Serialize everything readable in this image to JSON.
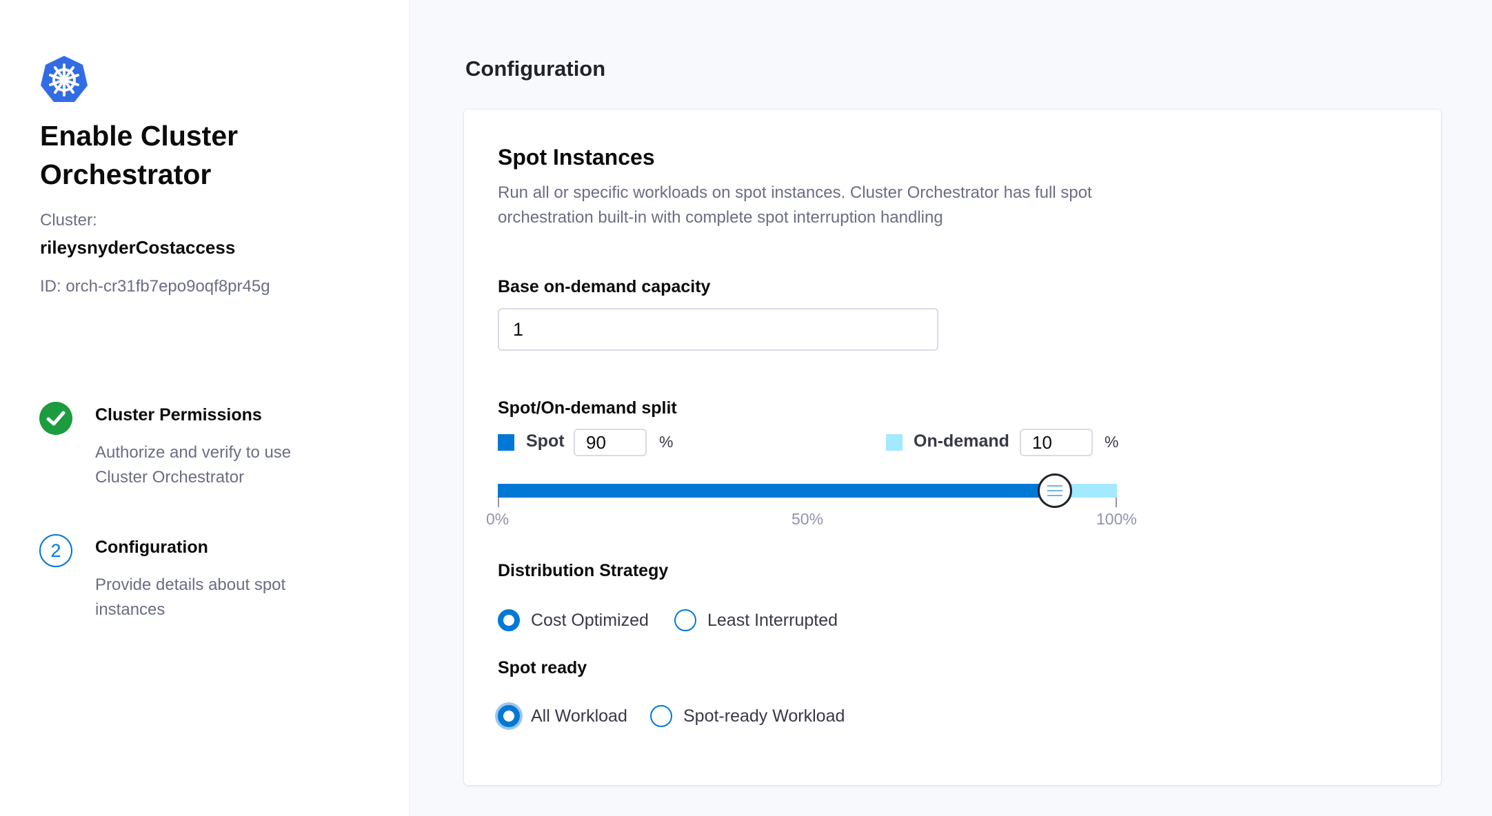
{
  "sidebar": {
    "logo_icon": "kubernetes-helm-icon",
    "title": "Enable Cluster Orchestrator",
    "cluster_label": "Cluster:",
    "cluster_name": "rileysnyderCostaccess",
    "cluster_id": "ID: orch-cr31fb7epo9oqf8pr45g",
    "steps": [
      {
        "icon": "check-circle-icon",
        "status": "completed",
        "title": "Cluster Permissions",
        "description": "Authorize and verify to use Cluster Orchestrator"
      },
      {
        "number": "2",
        "status": "current",
        "title": "Configuration",
        "description": "Provide details about spot instances"
      }
    ]
  },
  "main": {
    "title": "Configuration",
    "card": {
      "title": "Spot Instances",
      "description": "Run all or specific workloads on spot instances. Cluster Orchestrator has full spot orchestration built-in with complete spot interruption handling",
      "base_capacity": {
        "label": "Base on-demand capacity",
        "value": "1"
      },
      "split": {
        "label": "Spot/On-demand split",
        "spot_label": "Spot",
        "spot_value": "90",
        "ondemand_label": "On-demand",
        "ondemand_value": "10",
        "percent_sign": "%",
        "slider_value_percent": 90,
        "ticks": [
          "0%",
          "50%",
          "100%"
        ],
        "spot_color": "#0278d5",
        "ondemand_color": "#a3e9ff"
      },
      "distribution": {
        "label": "Distribution Strategy",
        "options": [
          "Cost Optimized",
          "Least Interrupted"
        ],
        "selected": "Cost Optimized"
      },
      "spot_ready": {
        "label": "Spot ready",
        "options": [
          "All Workload",
          "Spot-ready Workload"
        ],
        "selected": "All Workload"
      }
    }
  }
}
